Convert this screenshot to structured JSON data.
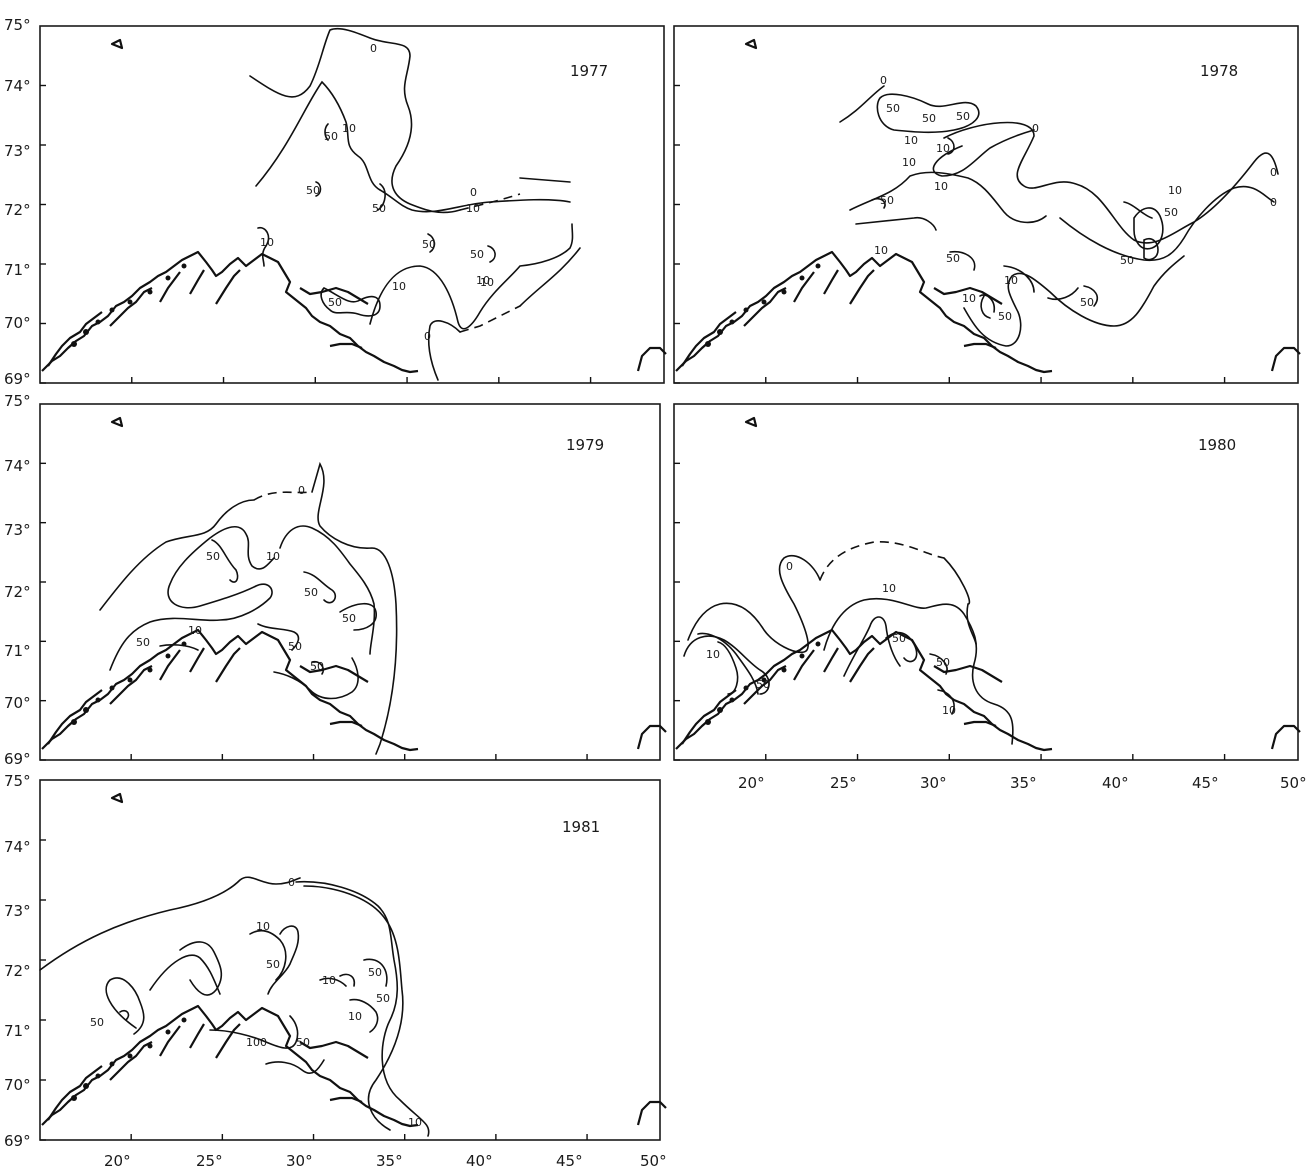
{
  "map_grid": {
    "lat_labels": [
      "75°",
      "74°",
      "73°",
      "72°",
      "71°",
      "70°",
      "69°"
    ],
    "lon_labels": [
      "20°",
      "25°",
      "30°",
      "35°",
      "40°",
      "45°",
      "50°"
    ]
  },
  "panels": [
    {
      "year": "1977",
      "labels": [
        "0",
        "10",
        "50",
        "50",
        "50",
        "0",
        "10",
        "10",
        "50",
        "50",
        "10",
        "50",
        "10",
        "10",
        "0"
      ]
    },
    {
      "year": "1978",
      "labels": [
        "0",
        "50",
        "50",
        "50",
        "0",
        "10",
        "10",
        "10",
        "10",
        "50",
        "10",
        "0",
        "10",
        "50",
        "0",
        "50",
        "50",
        "10",
        "10",
        "50",
        "50"
      ]
    },
    {
      "year": "1979",
      "labels": [
        "0",
        "50",
        "10",
        "50",
        "50",
        "10",
        "50",
        "50",
        "50"
      ]
    },
    {
      "year": "1980",
      "labels": [
        "0",
        "10",
        "10",
        "50",
        "50",
        "50",
        "10"
      ]
    },
    {
      "year": "1981",
      "labels": [
        "0",
        "10",
        "50",
        "10",
        "50",
        "50",
        "10",
        "100",
        "50",
        "50",
        "10"
      ]
    }
  ]
}
